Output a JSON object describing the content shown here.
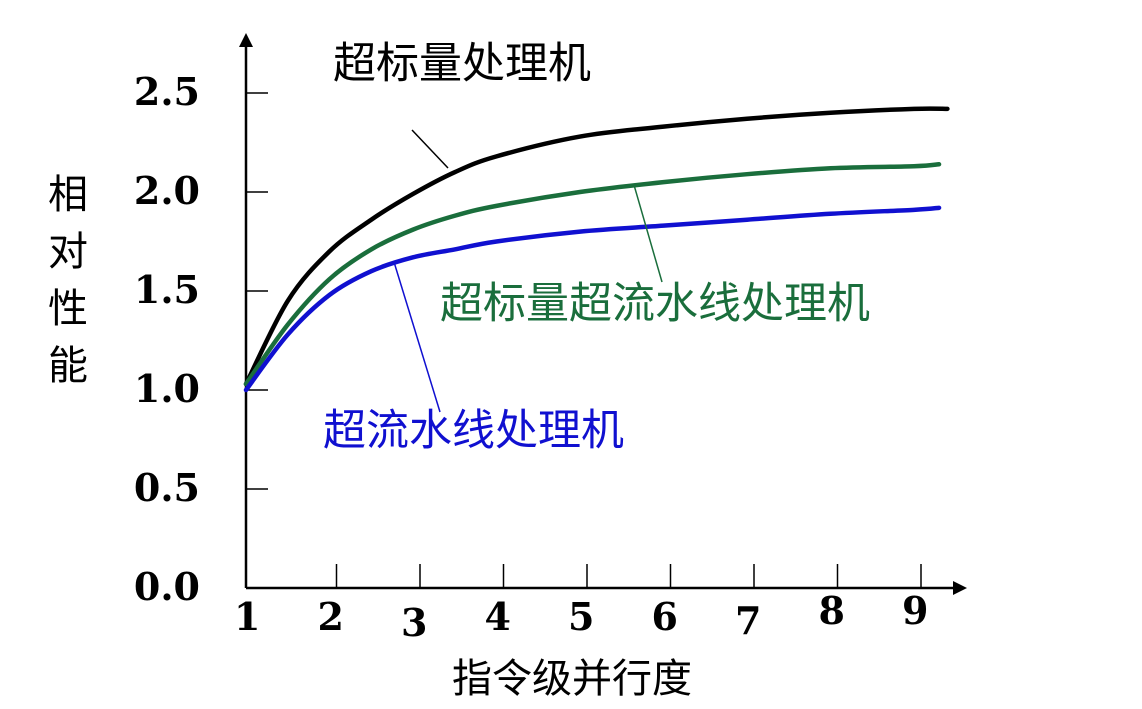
{
  "chart_data": {
    "type": "line",
    "title": "",
    "xlabel": "指令级并行度",
    "ylabel": "相对性能",
    "x_ticks": [
      "1",
      "2",
      "3",
      "4",
      "5",
      "6",
      "7",
      "8",
      "9"
    ],
    "y_ticks": [
      "0.0",
      "0.5",
      "1.0",
      "1.5",
      "2.0",
      "2.5"
    ],
    "xlim": [
      1,
      9.5
    ],
    "ylim": [
      0,
      2.8
    ],
    "grid": false,
    "series": [
      {
        "name": "超标量处理机",
        "color": "#000000",
        "x": [
          1,
          1.5,
          2,
          2.5,
          3,
          3.5,
          4,
          5,
          6,
          7,
          8,
          9,
          9.4
        ],
        "y": [
          1.03,
          1.45,
          1.7,
          1.86,
          1.99,
          2.1,
          2.18,
          2.28,
          2.33,
          2.37,
          2.4,
          2.42,
          2.42
        ]
      },
      {
        "name": "超标量超流水线处理机",
        "color": "#1a6e3c",
        "x": [
          1,
          1.5,
          2,
          2.5,
          3,
          3.5,
          4,
          5,
          6,
          7,
          8,
          9,
          9.3
        ],
        "y": [
          1.03,
          1.33,
          1.56,
          1.71,
          1.81,
          1.88,
          1.93,
          2.0,
          2.05,
          2.09,
          2.12,
          2.13,
          2.14
        ]
      },
      {
        "name": "超流水线处理机",
        "color": "#1010d0",
        "x": [
          1,
          1.5,
          2,
          2.5,
          3,
          3.5,
          4,
          5,
          6,
          7,
          8,
          9,
          9.3
        ],
        "y": [
          1.0,
          1.28,
          1.48,
          1.6,
          1.67,
          1.71,
          1.75,
          1.8,
          1.83,
          1.86,
          1.89,
          1.91,
          1.92
        ]
      }
    ]
  }
}
